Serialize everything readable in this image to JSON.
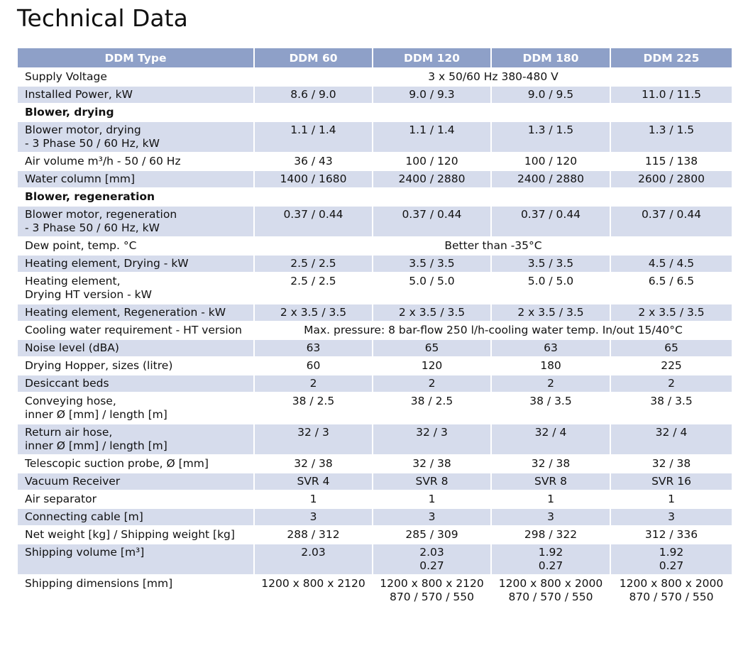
{
  "title": "Technical Data",
  "columns": [
    "DDM Type",
    "DDM 60",
    "DDM 120",
    "DDM 180",
    "DDM 225"
  ],
  "rows": [
    {
      "label": "Supply Voltage",
      "span": "3 x 50/60 Hz 380-480 V",
      "shade": false
    },
    {
      "label": "Installed Power, kW",
      "values": [
        "8.6 / 9.0",
        "9.0 / 9.3",
        "9.0 / 9.5",
        "11.0 / 11.5"
      ],
      "shade": true
    },
    {
      "label": "Blower, drying",
      "section": true
    },
    {
      "label": "Blower motor, drying\n- 3 Phase 50 / 60 Hz, kW",
      "values": [
        "1.1 / 1.4",
        "1.1 / 1.4",
        "1.3 / 1.5",
        "1.3 / 1.5"
      ],
      "shade": true
    },
    {
      "label": "Air volume m³/h - 50 / 60 Hz",
      "values": [
        "36 / 43",
        "100 / 120",
        "100 / 120",
        "115 / 138"
      ],
      "shade": false
    },
    {
      "label": "Water column [mm]",
      "values": [
        "1400 / 1680",
        "2400 / 2880",
        "2400 / 2880",
        "2600 / 2800"
      ],
      "shade": true
    },
    {
      "label": "Blower, regeneration",
      "section": true
    },
    {
      "label": "Blower motor, regeneration\n- 3 Phase 50 / 60 Hz, kW",
      "values": [
        "0.37 / 0.44",
        "0.37 / 0.44",
        "0.37 / 0.44",
        "0.37 / 0.44"
      ],
      "shade": true
    },
    {
      "label": "Dew point, temp. °C",
      "span": "Better than -35°C",
      "shade": false
    },
    {
      "label": "Heating element, Drying - kW",
      "values": [
        "2.5 / 2.5",
        "3.5 / 3.5",
        "3.5 / 3.5",
        "4.5 / 4.5"
      ],
      "shade": true
    },
    {
      "label": "Heating element,\nDrying HT version - kW",
      "values": [
        "2.5 / 2.5",
        "5.0 / 5.0",
        "5.0 / 5.0",
        "6.5 / 6.5"
      ],
      "shade": false
    },
    {
      "label": "Heating element, Regeneration - kW",
      "values": [
        "2 x 3.5 / 3.5",
        "2 x 3.5 / 3.5",
        "2 x 3.5 / 3.5",
        "2 x 3.5 / 3.5"
      ],
      "shade": true
    },
    {
      "label": "Cooling water requirement - HT version",
      "span": "Max. pressure: 8 bar-flow 250 l/h-cooling water temp. In/out 15/40°C",
      "shade": false
    },
    {
      "label": "Noise level (dBA)",
      "values": [
        "63",
        "65",
        "63",
        "65"
      ],
      "shade": true
    },
    {
      "label": "Drying Hopper, sizes (litre)",
      "values": [
        "60",
        "120",
        "180",
        "225"
      ],
      "shade": false
    },
    {
      "label": "Desiccant beds",
      "values": [
        "2",
        "2",
        "2",
        "2"
      ],
      "shade": true
    },
    {
      "label": "Conveying hose,\ninner Ø [mm] / length [m]",
      "values": [
        "38 / 2.5",
        "38 / 2.5",
        "38 / 3.5",
        "38 / 3.5"
      ],
      "shade": false
    },
    {
      "label": "Return air hose,\ninner Ø [mm] / length [m]",
      "values": [
        "32 / 3",
        "32 / 3",
        "32 / 4",
        "32 / 4"
      ],
      "shade": true
    },
    {
      "label": "Telescopic suction probe, Ø [mm]",
      "values": [
        "32 / 38",
        "32 / 38",
        "32 / 38",
        "32 / 38"
      ],
      "shade": false
    },
    {
      "label": "Vacuum Receiver",
      "values": [
        "SVR 4",
        "SVR 8",
        "SVR 8",
        "SVR 16"
      ],
      "shade": true
    },
    {
      "label": "Air separator",
      "values": [
        "1",
        "1",
        "1",
        "1"
      ],
      "shade": false
    },
    {
      "label": "Connecting cable [m]",
      "values": [
        "3",
        "3",
        "3",
        "3"
      ],
      "shade": true
    },
    {
      "label": "Net weight [kg] / Shipping weight [kg]",
      "values": [
        "288 / 312",
        "285 / 309",
        "298 / 322",
        "312 / 336"
      ],
      "shade": false
    },
    {
      "label": "Shipping volume [m³]",
      "values": [
        "2.03",
        "2.03\n0.27",
        "1.92\n0.27",
        "1.92\n0.27"
      ],
      "shade": true
    },
    {
      "label": "Shipping dimensions [mm]",
      "values": [
        "1200 x 800 x 2120",
        "1200 x 800 x 2120\n870 / 570 / 550",
        "1200 x 800 x 2000\n870 / 570 / 550",
        "1200 x 800 x 2000\n870 / 570 / 550"
      ],
      "shade": false
    }
  ],
  "colors": {
    "header_bg": "#8ea0c8",
    "row_shade": "#d6dcec",
    "header_text": "#ffffff"
  }
}
